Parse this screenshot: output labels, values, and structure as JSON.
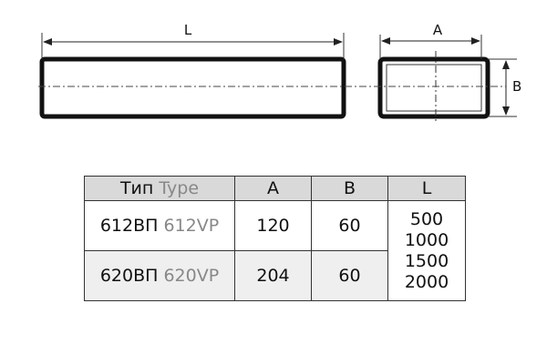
{
  "drawing": {
    "label_L": "L",
    "label_A": "A",
    "label_B": "B"
  },
  "table": {
    "headers": {
      "type_ru": "Тип",
      "type_en": "Type",
      "a": "A",
      "b": "B",
      "l": "L"
    },
    "rows": [
      {
        "type_ru": "612ВП",
        "type_en": "612VP",
        "a": "120",
        "b": "60"
      },
      {
        "type_ru": "620ВП",
        "type_en": "620VP",
        "a": "204",
        "b": "60"
      }
    ],
    "lengths": [
      "500",
      "1000",
      "1500",
      "2000"
    ]
  }
}
